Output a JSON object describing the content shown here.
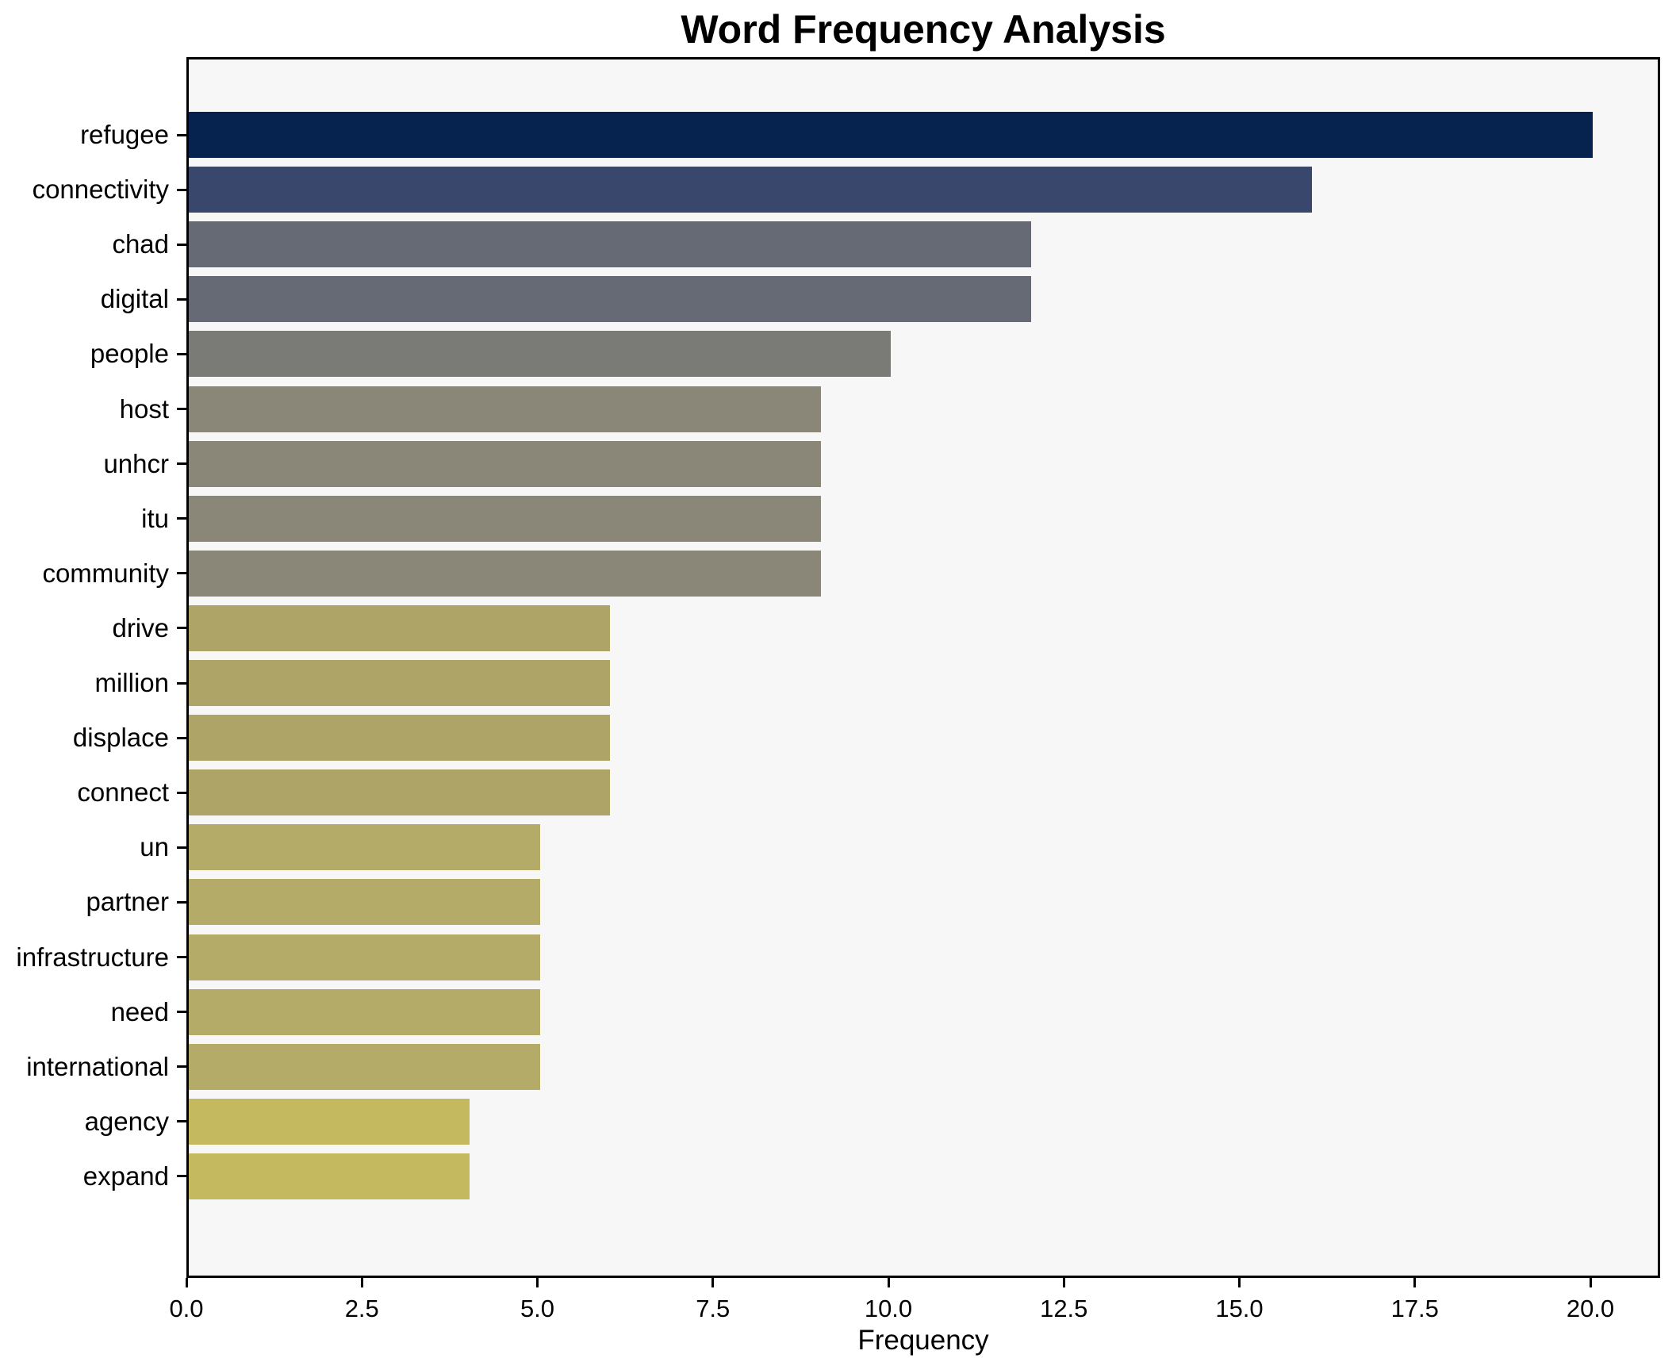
{
  "figure": {
    "background": "#ffffff"
  },
  "chart_data": {
    "type": "bar",
    "orientation": "horizontal",
    "title": "Word Frequency Analysis",
    "xlabel": "Frequency",
    "ylabel": "",
    "xlim": [
      0,
      21
    ],
    "x_ticks": [
      "0.0",
      "2.5",
      "5.0",
      "7.5",
      "10.0",
      "12.5",
      "15.0",
      "17.5",
      "20.0"
    ],
    "grid": false,
    "legend_position": "none",
    "plot_background": "#f7f7f7",
    "spine_color": "#000000",
    "categories": [
      "refugee",
      "connectivity",
      "chad",
      "digital",
      "people",
      "host",
      "unhcr",
      "itu",
      "community",
      "drive",
      "million",
      "displace",
      "connect",
      "un",
      "partner",
      "infrastructure",
      "need",
      "international",
      "agency",
      "expand"
    ],
    "values": [
      20,
      16,
      12,
      12,
      10,
      9,
      9,
      9,
      9,
      6,
      6,
      6,
      6,
      5,
      5,
      5,
      5,
      5,
      4,
      4
    ],
    "bar_colors": [
      "#05234e",
      "#3a476c",
      "#656a74",
      "#656a74",
      "#7a7a76",
      "#8a8678",
      "#8a8678",
      "#8a8678",
      "#8a8678",
      "#aea467",
      "#aea467",
      "#aea467",
      "#aea467",
      "#b5ab68",
      "#b5ab68",
      "#b5ab68",
      "#b5ab68",
      "#b5ab68",
      "#c5b95f",
      "#c5b95f"
    ]
  }
}
